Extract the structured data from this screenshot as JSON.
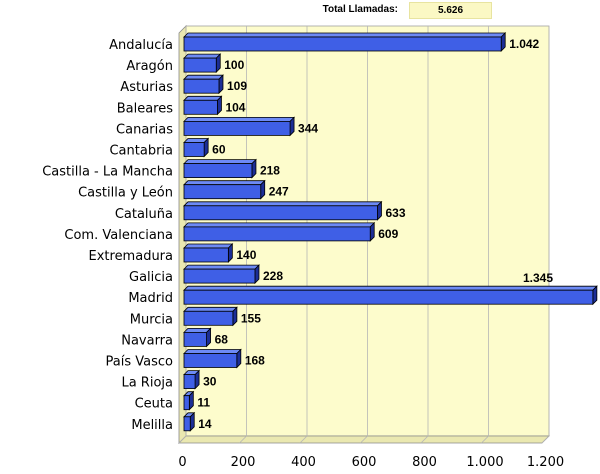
{
  "summary": {
    "label": "Total Llamadas:",
    "value": "5.626"
  },
  "colors": {
    "bar": "#3f5fe6",
    "bar_top": "#6d8af5",
    "bar_side": "#1c2e96",
    "plot_bg": "#fdfccc",
    "plot_wall": "#eae8b0",
    "grid": "#b5b5b5"
  },
  "chart_data": {
    "type": "bar",
    "orientation": "horizontal",
    "categories": [
      "Andalucía",
      "Aragón",
      "Asturias",
      "Baleares",
      "Canarias",
      "Cantabria",
      "Castilla - La Mancha",
      "Castilla y León",
      "Cataluña",
      "Com. Valenciana",
      "Extremadura",
      "Galicia",
      "Madrid",
      "Murcia",
      "Navarra",
      "País Vasco",
      "La Rioja",
      "Ceuta",
      "Melilla"
    ],
    "values": [
      1042,
      100,
      109,
      104,
      344,
      60,
      218,
      247,
      633,
      609,
      140,
      228,
      1345,
      155,
      68,
      168,
      30,
      11,
      14
    ],
    "value_labels": [
      "1.042",
      "100",
      "109",
      "104",
      "344",
      "60",
      "218",
      "247",
      "633",
      "609",
      "140",
      "228",
      "1.345",
      "155",
      "68",
      "168",
      "30",
      "11",
      "14"
    ],
    "xlim": [
      0,
      1200
    ],
    "x_ticks": [
      0,
      200,
      400,
      600,
      800,
      1000,
      1200
    ],
    "x_tick_labels": [
      "0",
      "200",
      "400",
      "600",
      "800",
      "1.000",
      "1.200"
    ],
    "grid": true,
    "legend": "none",
    "style": "3d"
  }
}
